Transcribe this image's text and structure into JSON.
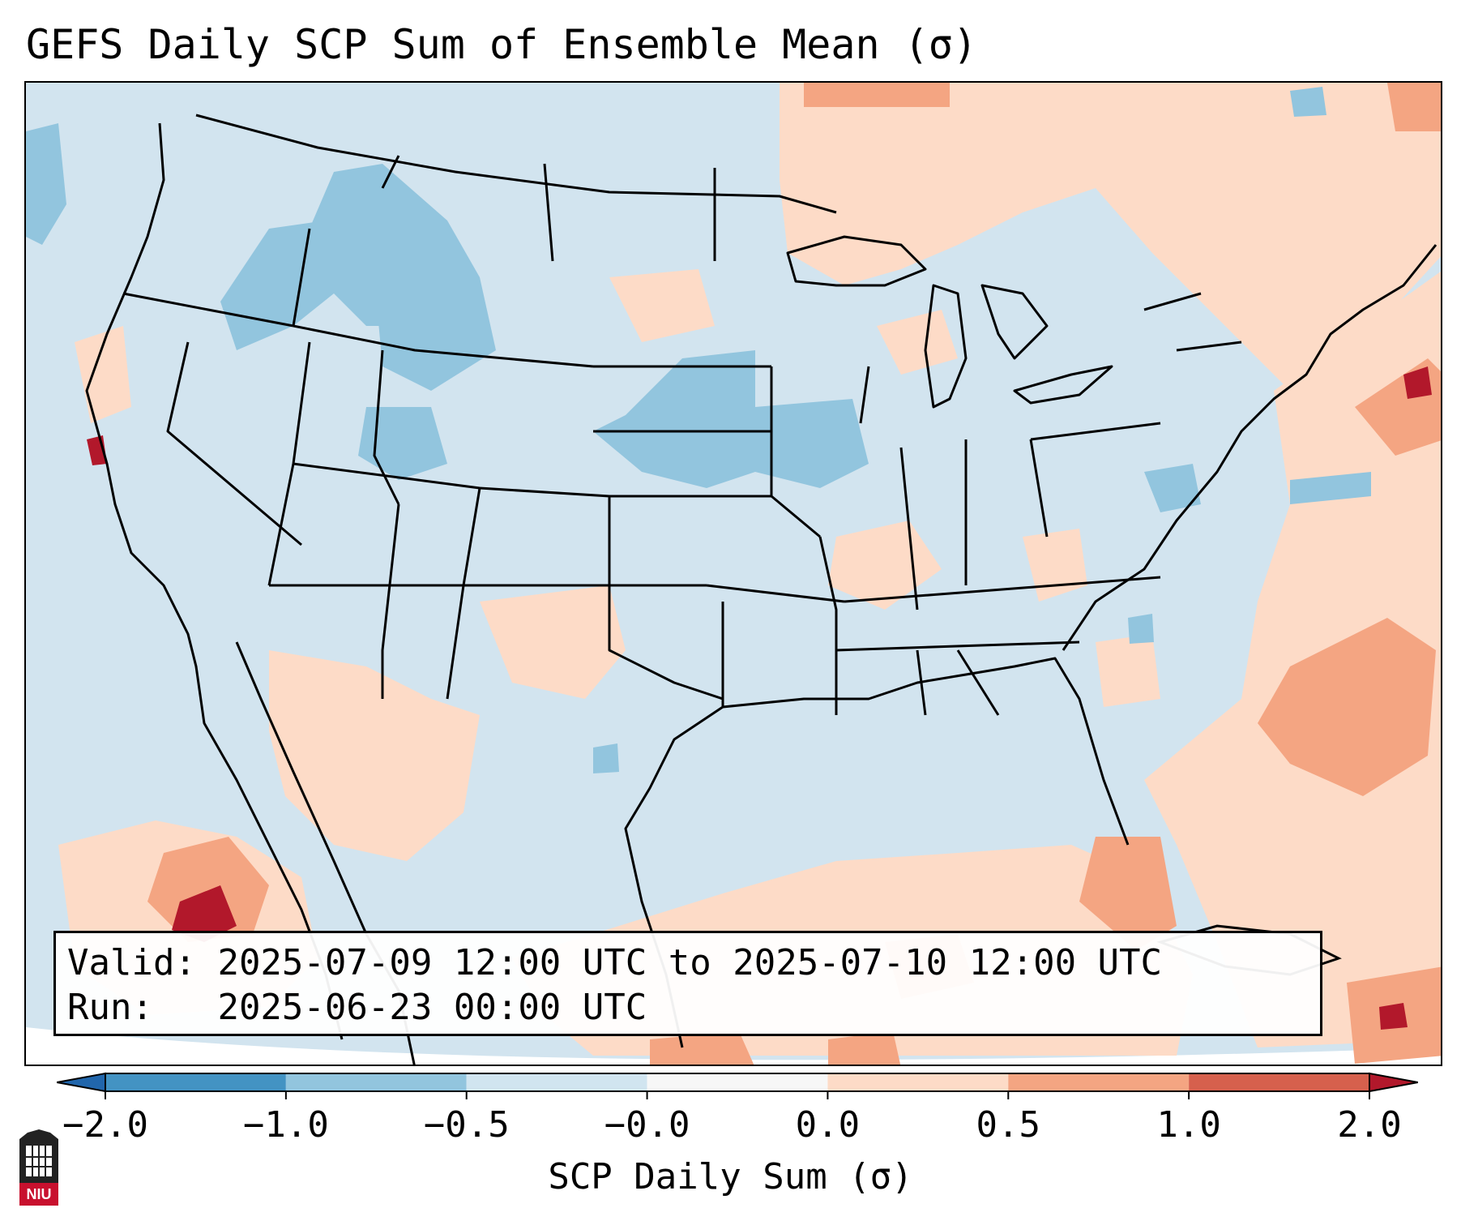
{
  "title": "GEFS Daily SCP Sum of Ensemble Mean (σ)",
  "info": {
    "valid_label": "Valid:",
    "valid_value": "2025-07-09 12:00 UTC to 2025-07-10 12:00 UTC",
    "run_label": "Run:",
    "run_value": "2025-06-23 00:00 UTC"
  },
  "colorbar": {
    "label": "SCP Daily Sum (σ)",
    "ticks": [
      "−2.0",
      "−1.0",
      "−0.5",
      "−0.0",
      "0.0",
      "0.5",
      "1.0",
      "2.0"
    ],
    "bins": [
      {
        "from": -2.0,
        "to": -1.0,
        "color": "#4393c3"
      },
      {
        "from": -1.0,
        "to": -0.5,
        "color": "#92c5de"
      },
      {
        "from": -0.5,
        "to": -0.0,
        "color": "#d1e5f0"
      },
      {
        "from": -0.0,
        "to": 0.0,
        "color": "#f7f7f7"
      },
      {
        "from": 0.0,
        "to": 0.5,
        "color": "#fddbc7"
      },
      {
        "from": 0.5,
        "to": 1.0,
        "color": "#f4a582"
      },
      {
        "from": 1.0,
        "to": 2.0,
        "color": "#d6604d"
      }
    ],
    "under_color": "#2166ac",
    "over_color": "#b2182b"
  },
  "logo": {
    "text": "NIU"
  }
}
